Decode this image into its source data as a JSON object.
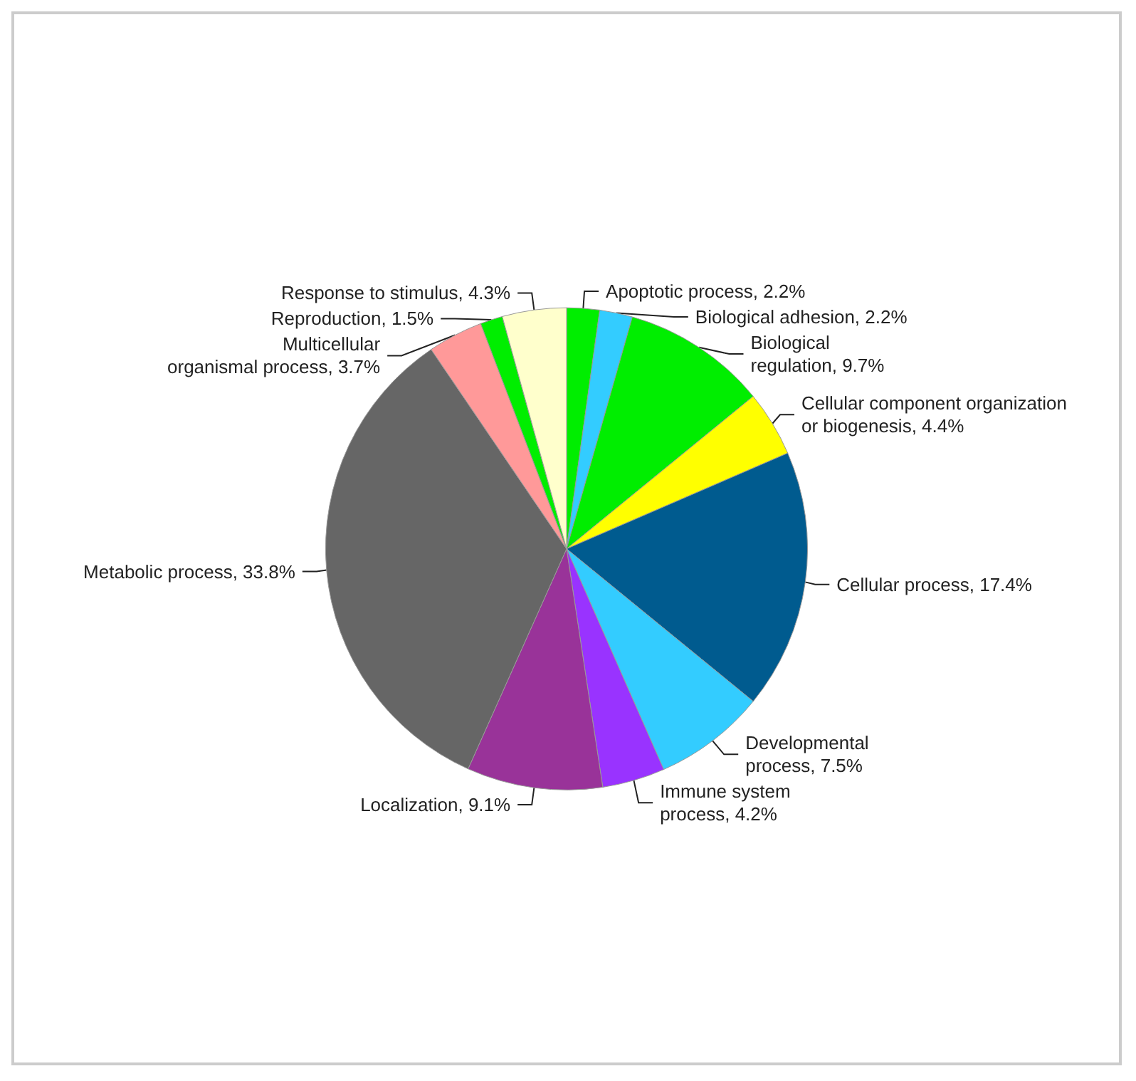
{
  "chart_data": {
    "type": "pie",
    "categories": [
      "Apoptotic process",
      "Biological adhesion",
      "Biological regulation",
      "Cellular component organization or biogenesis",
      "Cellular process",
      "Developmental process",
      "Immune system process",
      "Localization",
      "Metabolic process",
      "Multicellular organismal process",
      "Reproduction",
      "Response to stimulus"
    ],
    "values": [
      2.2,
      2.2,
      9.7,
      4.4,
      17.4,
      7.5,
      4.2,
      9.1,
      33.8,
      3.7,
      1.5,
      4.3
    ],
    "value_labels": [
      "2.2%",
      "2.2%",
      "9.7%",
      "4.4%",
      "17.4%",
      "7.5%",
      "4.2%",
      "9.1%",
      "33.8%",
      "3.7%",
      "1.5%",
      "4.3%"
    ],
    "colors": [
      "#00ee00",
      "#33ccff",
      "#00ee00",
      "#ffff00",
      "#005b8f",
      "#33ccff",
      "#9933ff",
      "#993399",
      "#666666",
      "#ff9999",
      "#00ee00",
      "#ffffcc"
    ],
    "legend": false
  }
}
